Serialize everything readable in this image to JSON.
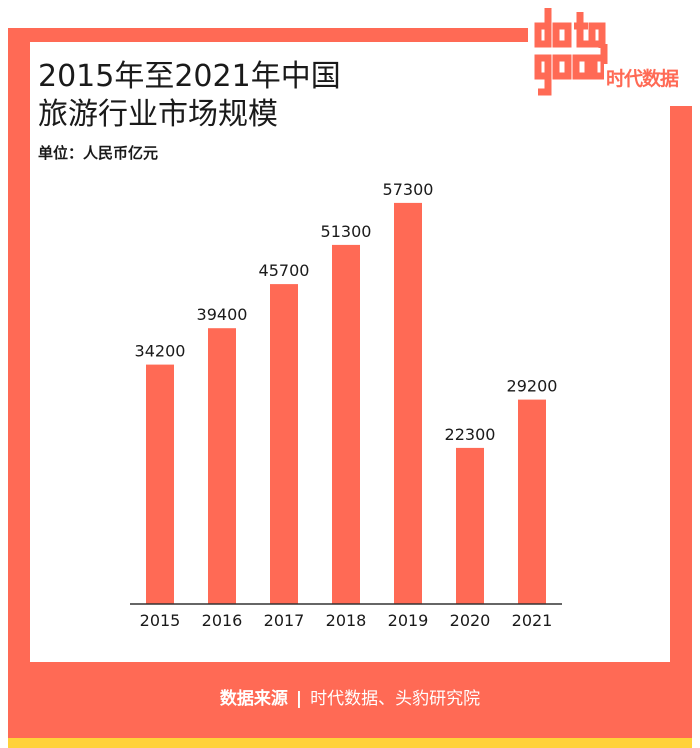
{
  "title_lines": [
    "2015年至2021年中国",
    "旅游行业市场规模"
  ],
  "unit": "单位：人民币亿元",
  "logo": {
    "mark": "data good",
    "text": "时代数据"
  },
  "source": {
    "label": "数据来源",
    "separator": "|",
    "text": "时代数据、头豹研究院"
  },
  "colors": {
    "accent": "#ff6a55",
    "stripe": "#ffd23a",
    "text": "#1a1a1a"
  },
  "chart_data": {
    "type": "bar",
    "categories": [
      "2015",
      "2016",
      "2017",
      "2018",
      "2019",
      "2020",
      "2021"
    ],
    "values": [
      34200,
      39400,
      45700,
      51300,
      57300,
      22300,
      29200
    ],
    "title": "2015年至2021年中国旅游行业市场规模",
    "ylabel": "单位：人民币亿元",
    "ylim": [
      0,
      64000
    ],
    "grid": false,
    "legend": "none"
  }
}
